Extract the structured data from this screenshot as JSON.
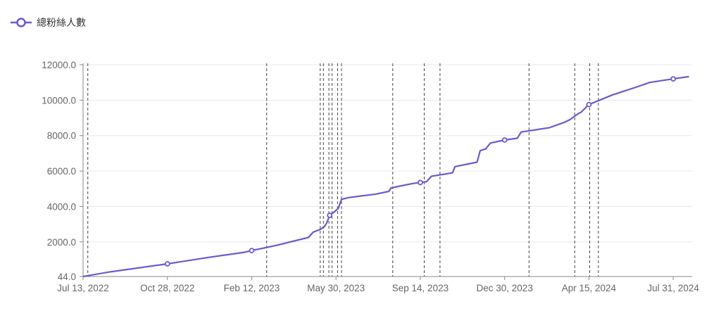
{
  "colors": {
    "series": "#6a5acd",
    "grid": "#e6e8ef",
    "axis": "#8a8a8a",
    "marker": "#444444"
  },
  "legend": {
    "label": "總粉絲人數",
    "icon": "circle-line-icon"
  },
  "chart_data": {
    "type": "line",
    "title": "",
    "xlabel": "",
    "ylabel": "",
    "series": [
      {
        "name": "總粉絲人數",
        "points": [
          [
            "2022-07-13",
            44
          ],
          [
            "2022-08-15",
            300
          ],
          [
            "2022-10-28",
            760
          ],
          [
            "2022-12-20",
            1130
          ],
          [
            "2023-02-01",
            1400
          ],
          [
            "2023-02-12",
            1510
          ],
          [
            "2023-03-15",
            1800
          ],
          [
            "2023-04-25",
            2250
          ],
          [
            "2023-05-01",
            2550
          ],
          [
            "2023-05-10",
            2700
          ],
          [
            "2023-05-15",
            2850
          ],
          [
            "2023-05-18",
            3050
          ],
          [
            "2023-05-22",
            3500
          ],
          [
            "2023-05-28",
            3700
          ],
          [
            "2023-06-02",
            3900
          ],
          [
            "2023-06-06",
            4400
          ],
          [
            "2023-06-15",
            4500
          ],
          [
            "2023-07-20",
            4700
          ],
          [
            "2023-08-05",
            4850
          ],
          [
            "2023-08-08",
            5050
          ],
          [
            "2023-09-05",
            5300
          ],
          [
            "2023-09-14",
            5350
          ],
          [
            "2023-09-22",
            5400
          ],
          [
            "2023-09-28",
            5700
          ],
          [
            "2023-10-25",
            5900
          ],
          [
            "2023-10-28",
            6250
          ],
          [
            "2023-11-25",
            6500
          ],
          [
            "2023-11-29",
            7150
          ],
          [
            "2023-12-06",
            7250
          ],
          [
            "2023-12-12",
            7580
          ],
          [
            "2023-12-30",
            7750
          ],
          [
            "2024-01-15",
            7850
          ],
          [
            "2024-01-20",
            8200
          ],
          [
            "2024-02-25",
            8450
          ],
          [
            "2024-03-15",
            8750
          ],
          [
            "2024-03-22",
            8900
          ],
          [
            "2024-03-28",
            9100
          ],
          [
            "2024-04-02",
            9250
          ],
          [
            "2024-04-05",
            9320
          ],
          [
            "2024-04-15",
            9750
          ],
          [
            "2024-05-15",
            10300
          ],
          [
            "2024-06-15",
            10750
          ],
          [
            "2024-07-01",
            11000
          ],
          [
            "2024-07-31",
            11200
          ],
          [
            "2024-08-20",
            11330
          ]
        ],
        "markers": [
          "2022-10-28",
          "2023-02-12",
          "2023-05-22",
          "2023-09-14",
          "2023-12-30",
          "2024-04-15",
          "2024-07-31"
        ]
      }
    ],
    "event_lines": [
      "2022-07-19",
      "2023-03-03",
      "2023-05-10",
      "2023-05-14",
      "2023-05-21",
      "2023-05-25",
      "2023-06-01",
      "2023-06-06",
      "2023-08-10",
      "2023-09-19",
      "2023-10-09",
      "2024-01-30",
      "2024-03-28",
      "2024-04-16",
      "2024-04-27"
    ],
    "xlim": [
      "2022-07-13",
      "2024-08-24"
    ],
    "x_ticks": [
      {
        "value": "2022-07-13",
        "label": "Jul 13, 2022"
      },
      {
        "value": "2022-10-28",
        "label": "Oct 28, 2022"
      },
      {
        "value": "2023-02-12",
        "label": "Feb 12, 2023"
      },
      {
        "value": "2023-05-30",
        "label": "May 30, 2023"
      },
      {
        "value": "2023-09-14",
        "label": "Sep 14, 2023"
      },
      {
        "value": "2023-12-30",
        "label": "Dec 30, 2023"
      },
      {
        "value": "2024-04-15",
        "label": "Apr 15, 2024"
      },
      {
        "value": "2024-07-31",
        "label": "Jul 31, 2024"
      }
    ],
    "ylim": [
      44,
      12000
    ],
    "y_ticks": [
      {
        "value": 44,
        "label": "44.0"
      },
      {
        "value": 2000,
        "label": "2000.0"
      },
      {
        "value": 4000,
        "label": "4000.0"
      },
      {
        "value": 6000,
        "label": "6000.0"
      },
      {
        "value": 8000,
        "label": "8000.0"
      },
      {
        "value": 10000,
        "label": "10000.0"
      },
      {
        "value": 12000,
        "label": "12000.0"
      }
    ],
    "grid": true,
    "legend_position": "top-left"
  }
}
